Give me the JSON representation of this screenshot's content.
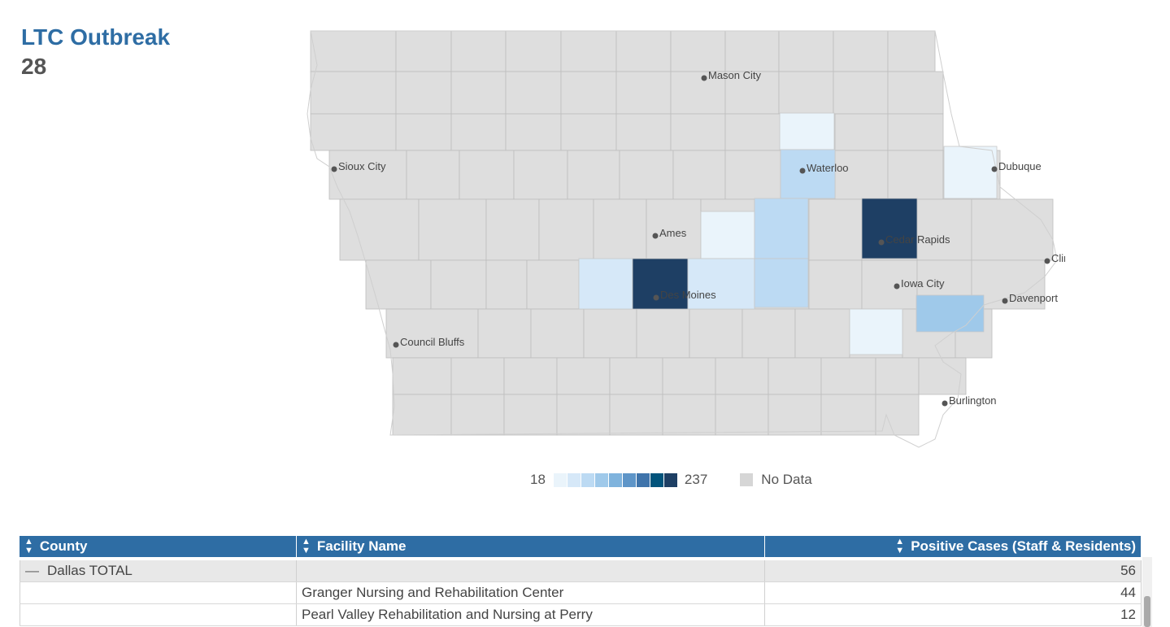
{
  "kpi": {
    "title": "LTC Outbreak",
    "value": "28"
  },
  "colors": {
    "no_data": "#dedede",
    "scale": [
      "#eaf4fb",
      "#d6e8f8",
      "#bcdaf3",
      "#9fc9ea",
      "#7fb3dd",
      "#5e95c8",
      "#3f74ab",
      "#02547c",
      "#1e3f64"
    ]
  },
  "map": {
    "cities": [
      {
        "name": "Mason City"
      },
      {
        "name": "Sioux City"
      },
      {
        "name": "Waterloo"
      },
      {
        "name": "Dubuque"
      },
      {
        "name": "Ames"
      },
      {
        "name": "Cedar Rapids"
      },
      {
        "name": "Clinton"
      },
      {
        "name": "Iowa City"
      },
      {
        "name": "Des Moines"
      },
      {
        "name": "Davenport"
      },
      {
        "name": "Council Bluffs"
      },
      {
        "name": "Burlington"
      }
    ],
    "highlighted_counties": [
      {
        "id": "bremer",
        "level": 0
      },
      {
        "id": "black-hawk",
        "level": 2
      },
      {
        "id": "dubuque",
        "level": 0
      },
      {
        "id": "story",
        "level": 0
      },
      {
        "id": "marshall",
        "level": 2
      },
      {
        "id": "linn",
        "level": 8
      },
      {
        "id": "dallas",
        "level": 1
      },
      {
        "id": "polk",
        "level": 8
      },
      {
        "id": "jasper",
        "level": 1
      },
      {
        "id": "poweshiek",
        "level": 2
      },
      {
        "id": "washington",
        "level": 0
      },
      {
        "id": "muscatine",
        "level": 3
      }
    ]
  },
  "legend": {
    "min": "18",
    "max": "237",
    "no_data_label": "No Data"
  },
  "table": {
    "headers": [
      "County",
      "Facility Name",
      "Positive Cases (Staff & Residents)"
    ],
    "total_row": {
      "county": "Dallas TOTAL",
      "facility": "",
      "cases": "56"
    },
    "rows": [
      {
        "county": "",
        "facility": "Granger Nursing and Rehabilitation Center",
        "cases": "44"
      },
      {
        "county": "",
        "facility": "Pearl Valley Rehabilitation and Nursing at Perry",
        "cases": "12"
      }
    ]
  }
}
